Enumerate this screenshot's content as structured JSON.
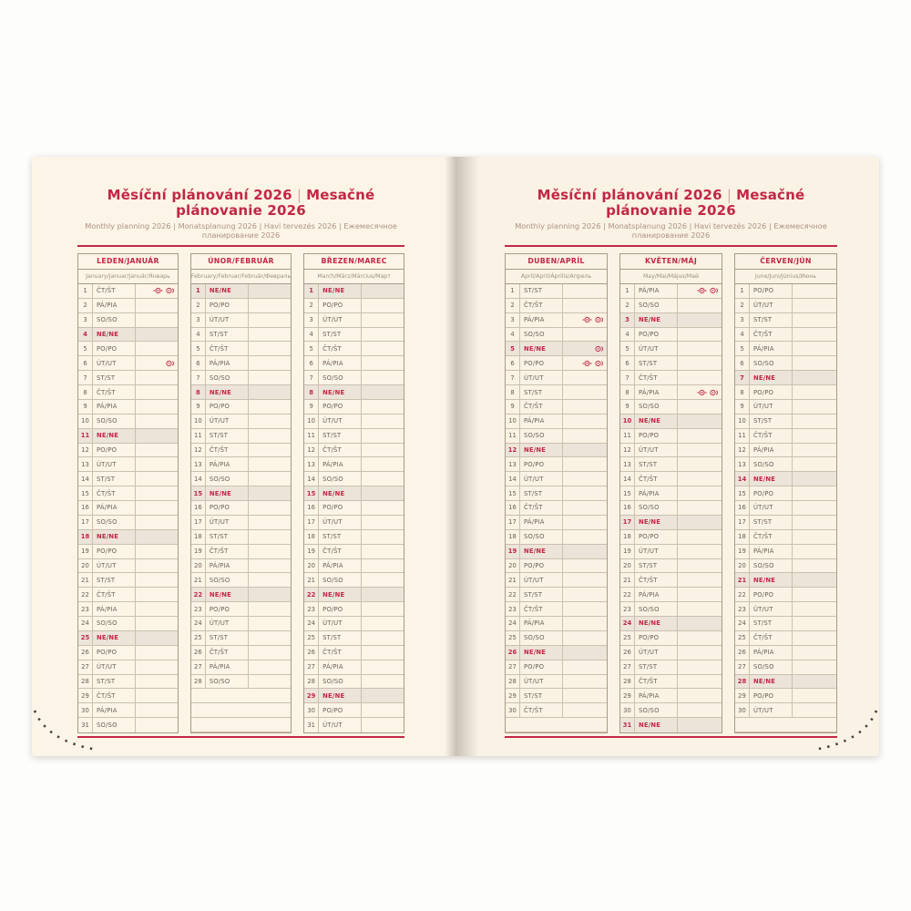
{
  "title": {
    "cz": "Měsíční plánování 2026",
    "separator": "|",
    "sk": "Mesačné plánovanie 2026"
  },
  "subtitle": "Monthly planning 2026 | Monatsplanung 2026 | Havi tervezés 2026 | Ежемесячное планирование 2026",
  "colors": {
    "accent_red": "#c22746",
    "page_cream": "#fcf4e6",
    "sunday_row_bg": "#ece4d9",
    "row_line": "#ccc0ae",
    "text": "#6b6257"
  },
  "icons_legend": {
    "holiday_icon": "small red circular holiday mark (one per country, CZ/SK)"
  },
  "pages": [
    {
      "months": [
        {
          "title": "LEDEN/JANUÁR",
          "subtitle": "January/Januar/Január/Январь",
          "empty_rows": 0,
          "rows": [
            [
              1,
              "ČT/ŠT",
              2
            ],
            [
              2,
              "PÁ/PIA",
              0
            ],
            [
              3,
              "SO/SO",
              0
            ],
            [
              4,
              "NE/NE",
              0
            ],
            [
              5,
              "PO/PO",
              0
            ],
            [
              6,
              "ÚT/UT",
              1
            ],
            [
              7,
              "ST/ST",
              0
            ],
            [
              8,
              "ČT/ŠT",
              0
            ],
            [
              9,
              "PÁ/PIA",
              0
            ],
            [
              10,
              "SO/SO",
              0
            ],
            [
              11,
              "NE/NE",
              0
            ],
            [
              12,
              "PO/PO",
              0
            ],
            [
              13,
              "ÚT/UT",
              0
            ],
            [
              14,
              "ST/ST",
              0
            ],
            [
              15,
              "ČT/ŠT",
              0
            ],
            [
              16,
              "PÁ/PIA",
              0
            ],
            [
              17,
              "SO/SO",
              0
            ],
            [
              18,
              "NE/NE",
              0
            ],
            [
              19,
              "PO/PO",
              0
            ],
            [
              20,
              "ÚT/UT",
              0
            ],
            [
              21,
              "ST/ST",
              0
            ],
            [
              22,
              "ČT/ŠT",
              0
            ],
            [
              23,
              "PÁ/PIA",
              0
            ],
            [
              24,
              "SO/SO",
              0
            ],
            [
              25,
              "NE/NE",
              0
            ],
            [
              26,
              "PO/PO",
              0
            ],
            [
              27,
              "ÚT/UT",
              0
            ],
            [
              28,
              "ST/ST",
              0
            ],
            [
              29,
              "ČT/ŠT",
              0
            ],
            [
              30,
              "PÁ/PIA",
              0
            ],
            [
              31,
              "SO/SO",
              0
            ]
          ]
        },
        {
          "title": "ÚNOR/FEBRUÁR",
          "subtitle": "February/Februar/Február/Февраль",
          "empty_rows": 3,
          "rows": [
            [
              1,
              "NE/NE",
              0
            ],
            [
              2,
              "PO/PO",
              0
            ],
            [
              3,
              "ÚT/UT",
              0
            ],
            [
              4,
              "ST/ST",
              0
            ],
            [
              5,
              "ČT/ŠT",
              0
            ],
            [
              6,
              "PÁ/PIA",
              0
            ],
            [
              7,
              "SO/SO",
              0
            ],
            [
              8,
              "NE/NE",
              0
            ],
            [
              9,
              "PO/PO",
              0
            ],
            [
              10,
              "ÚT/UT",
              0
            ],
            [
              11,
              "ST/ST",
              0
            ],
            [
              12,
              "ČT/ŠT",
              0
            ],
            [
              13,
              "PÁ/PIA",
              0
            ],
            [
              14,
              "SO/SO",
              0
            ],
            [
              15,
              "NE/NE",
              0
            ],
            [
              16,
              "PO/PO",
              0
            ],
            [
              17,
              "ÚT/UT",
              0
            ],
            [
              18,
              "ST/ST",
              0
            ],
            [
              19,
              "ČT/ŠT",
              0
            ],
            [
              20,
              "PÁ/PIA",
              0
            ],
            [
              21,
              "SO/SO",
              0
            ],
            [
              22,
              "NE/NE",
              0
            ],
            [
              23,
              "PO/PO",
              0
            ],
            [
              24,
              "ÚT/UT",
              0
            ],
            [
              25,
              "ST/ST",
              0
            ],
            [
              26,
              "ČT/ŠT",
              0
            ],
            [
              27,
              "PÁ/PIA",
              0
            ],
            [
              28,
              "SO/SO",
              0
            ]
          ]
        },
        {
          "title": "BŘEZEN/MAREC",
          "subtitle": "March/März/Március/Март",
          "empty_rows": 0,
          "rows": [
            [
              1,
              "NE/NE",
              0
            ],
            [
              2,
              "PO/PO",
              0
            ],
            [
              3,
              "ÚT/UT",
              0
            ],
            [
              4,
              "ST/ST",
              0
            ],
            [
              5,
              "ČT/ŠT",
              0
            ],
            [
              6,
              "PÁ/PIA",
              0
            ],
            [
              7,
              "SO/SO",
              0
            ],
            [
              8,
              "NE/NE",
              0
            ],
            [
              9,
              "PO/PO",
              0
            ],
            [
              10,
              "ÚT/UT",
              0
            ],
            [
              11,
              "ST/ST",
              0
            ],
            [
              12,
              "ČT/ŠT",
              0
            ],
            [
              13,
              "PÁ/PIA",
              0
            ],
            [
              14,
              "SO/SO",
              0
            ],
            [
              15,
              "NE/NE",
              0
            ],
            [
              16,
              "PO/PO",
              0
            ],
            [
              17,
              "ÚT/UT",
              0
            ],
            [
              18,
              "ST/ST",
              0
            ],
            [
              19,
              "ČT/ŠT",
              0
            ],
            [
              20,
              "PÁ/PIA",
              0
            ],
            [
              21,
              "SO/SO",
              0
            ],
            [
              22,
              "NE/NE",
              0
            ],
            [
              23,
              "PO/PO",
              0
            ],
            [
              24,
              "ÚT/UT",
              0
            ],
            [
              25,
              "ST/ST",
              0
            ],
            [
              26,
              "ČT/ŠT",
              0
            ],
            [
              27,
              "PÁ/PIA",
              0
            ],
            [
              28,
              "SO/SO",
              0
            ],
            [
              29,
              "NE/NE",
              0
            ],
            [
              30,
              "PO/PO",
              0
            ],
            [
              31,
              "ÚT/UT",
              0
            ]
          ]
        }
      ]
    },
    {
      "months": [
        {
          "title": "DUBEN/APRÍL",
          "subtitle": "April/April/Április/Апрель",
          "empty_rows": 1,
          "rows": [
            [
              1,
              "ST/ST",
              0
            ],
            [
              2,
              "ČT/ŠT",
              0
            ],
            [
              3,
              "PÁ/PIA",
              2
            ],
            [
              4,
              "SO/SO",
              0
            ],
            [
              5,
              "NE/NE",
              1
            ],
            [
              6,
              "PO/PO",
              2
            ],
            [
              7,
              "ÚT/UT",
              0
            ],
            [
              8,
              "ST/ST",
              0
            ],
            [
              9,
              "ČT/ŠT",
              0
            ],
            [
              10,
              "PÁ/PIA",
              0
            ],
            [
              11,
              "SO/SO",
              0
            ],
            [
              12,
              "NE/NE",
              0
            ],
            [
              13,
              "PO/PO",
              0
            ],
            [
              14,
              "ÚT/UT",
              0
            ],
            [
              15,
              "ST/ST",
              0
            ],
            [
              16,
              "ČT/ŠT",
              0
            ],
            [
              17,
              "PÁ/PIA",
              0
            ],
            [
              18,
              "SO/SO",
              0
            ],
            [
              19,
              "NE/NE",
              0
            ],
            [
              20,
              "PO/PO",
              0
            ],
            [
              21,
              "ÚT/UT",
              0
            ],
            [
              22,
              "ST/ST",
              0
            ],
            [
              23,
              "ČT/ŠT",
              0
            ],
            [
              24,
              "PÁ/PIA",
              0
            ],
            [
              25,
              "SO/SO",
              0
            ],
            [
              26,
              "NE/NE",
              0
            ],
            [
              27,
              "PO/PO",
              0
            ],
            [
              28,
              "ÚT/UT",
              0
            ],
            [
              29,
              "ST/ST",
              0
            ],
            [
              30,
              "ČT/ŠT",
              0
            ]
          ]
        },
        {
          "title": "KVĚTEN/MÁJ",
          "subtitle": "May/Mai/Május/Май",
          "empty_rows": 0,
          "rows": [
            [
              1,
              "PÁ/PIA",
              2
            ],
            [
              2,
              "SO/SO",
              0
            ],
            [
              3,
              "NE/NE",
              0
            ],
            [
              4,
              "PO/PO",
              0
            ],
            [
              5,
              "ÚT/UT",
              0
            ],
            [
              6,
              "ST/ST",
              0
            ],
            [
              7,
              "ČT/ŠT",
              0
            ],
            [
              8,
              "PÁ/PIA",
              2
            ],
            [
              9,
              "SO/SO",
              0
            ],
            [
              10,
              "NE/NE",
              0
            ],
            [
              11,
              "PO/PO",
              0
            ],
            [
              12,
              "ÚT/UT",
              0
            ],
            [
              13,
              "ST/ST",
              0
            ],
            [
              14,
              "ČT/ŠT",
              0
            ],
            [
              15,
              "PÁ/PIA",
              0
            ],
            [
              16,
              "SO/SO",
              0
            ],
            [
              17,
              "NE/NE",
              0
            ],
            [
              18,
              "PO/PO",
              0
            ],
            [
              19,
              "ÚT/UT",
              0
            ],
            [
              20,
              "ST/ST",
              0
            ],
            [
              21,
              "ČT/ŠT",
              0
            ],
            [
              22,
              "PÁ/PIA",
              0
            ],
            [
              23,
              "SO/SO",
              0
            ],
            [
              24,
              "NE/NE",
              0
            ],
            [
              25,
              "PO/PO",
              0
            ],
            [
              26,
              "ÚT/UT",
              0
            ],
            [
              27,
              "ST/ST",
              0
            ],
            [
              28,
              "ČT/ŠT",
              0
            ],
            [
              29,
              "PÁ/PIA",
              0
            ],
            [
              30,
              "SO/SO",
              0
            ],
            [
              31,
              "NE/NE",
              0
            ]
          ]
        },
        {
          "title": "ČERVEN/JÚN",
          "subtitle": "June/Juni/Június/Июнь",
          "empty_rows": 1,
          "rows": [
            [
              1,
              "PO/PO",
              0
            ],
            [
              2,
              "ÚT/UT",
              0
            ],
            [
              3,
              "ST/ST",
              0
            ],
            [
              4,
              "ČT/ŠT",
              0
            ],
            [
              5,
              "PÁ/PIA",
              0
            ],
            [
              6,
              "SO/SO",
              0
            ],
            [
              7,
              "NE/NE",
              0
            ],
            [
              8,
              "PO/PO",
              0
            ],
            [
              9,
              "ÚT/UT",
              0
            ],
            [
              10,
              "ST/ST",
              0
            ],
            [
              11,
              "ČT/ŠT",
              0
            ],
            [
              12,
              "PÁ/PIA",
              0
            ],
            [
              13,
              "SO/SO",
              0
            ],
            [
              14,
              "NE/NE",
              0
            ],
            [
              15,
              "PO/PO",
              0
            ],
            [
              16,
              "ÚT/UT",
              0
            ],
            [
              17,
              "ST/ST",
              0
            ],
            [
              18,
              "ČT/ŠT",
              0
            ],
            [
              19,
              "PÁ/PIA",
              0
            ],
            [
              20,
              "SO/SO",
              0
            ],
            [
              21,
              "NE/NE",
              0
            ],
            [
              22,
              "PO/PO",
              0
            ],
            [
              23,
              "ÚT/UT",
              0
            ],
            [
              24,
              "ST/ST",
              0
            ],
            [
              25,
              "ČT/ŠT",
              0
            ],
            [
              26,
              "PÁ/PIA",
              0
            ],
            [
              27,
              "SO/SO",
              0
            ],
            [
              28,
              "NE/NE",
              0
            ],
            [
              29,
              "PO/PO",
              0
            ],
            [
              30,
              "ÚT/UT",
              0
            ]
          ]
        }
      ]
    }
  ]
}
